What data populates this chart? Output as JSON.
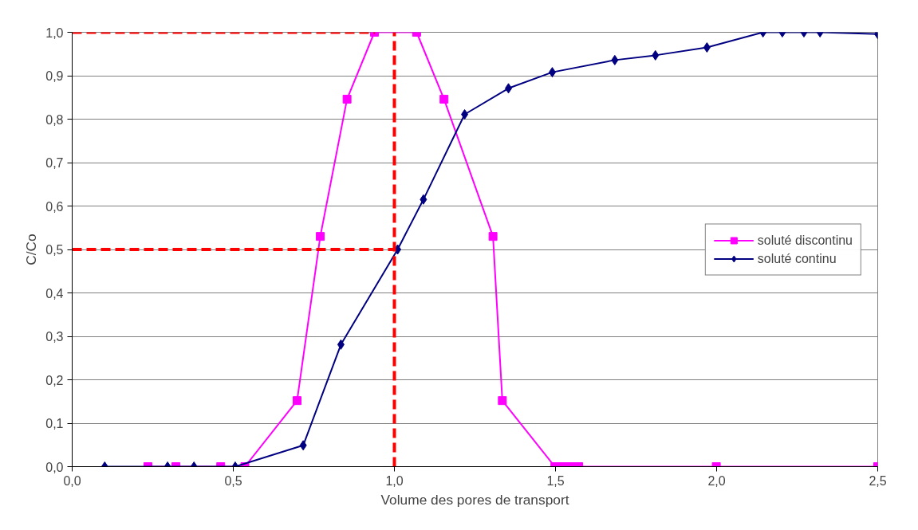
{
  "chart_data": {
    "type": "line",
    "xlabel": "Volume des pores de transport",
    "ylabel": "C/Co",
    "xlim": [
      0,
      2.5
    ],
    "ylim": [
      0,
      1.0
    ],
    "xticks": [
      {
        "value": 0,
        "label": "0,0"
      },
      {
        "value": 0.5,
        "label": "0,5"
      },
      {
        "value": 1.0,
        "label": "1,0"
      },
      {
        "value": 1.5,
        "label": "1,5"
      },
      {
        "value": 2.0,
        "label": "2,0"
      },
      {
        "value": 2.5,
        "label": "2,5"
      }
    ],
    "yticks": [
      {
        "value": 0,
        "label": "0,0"
      },
      {
        "value": 0.1,
        "label": "0,1"
      },
      {
        "value": 0.2,
        "label": "0,2"
      },
      {
        "value": 0.3,
        "label": "0,3"
      },
      {
        "value": 0.4,
        "label": "0,4"
      },
      {
        "value": 0.5,
        "label": "0,5"
      },
      {
        "value": 0.6,
        "label": "0,6"
      },
      {
        "value": 0.7,
        "label": "0,7"
      },
      {
        "value": 0.8,
        "label": "0,8"
      },
      {
        "value": 0.9,
        "label": "0,9"
      },
      {
        "value": 1.0,
        "label": "1,0"
      }
    ],
    "grid": "y",
    "legend": "right",
    "series": [
      {
        "name": "soluté discontinu",
        "color": "#ff00ff",
        "marker": "square",
        "line_style": "solid",
        "x": [
          0.235,
          0.322,
          0.461,
          0.536,
          0.698,
          0.77,
          0.853,
          0.938,
          1.069,
          1.154,
          1.306,
          1.335,
          1.498,
          1.517,
          1.535,
          1.554,
          1.572,
          1.999,
          2.5
        ],
        "values": [
          0,
          0,
          0,
          0,
          0.152,
          0.53,
          0.846,
          1.0,
          1.0,
          0.846,
          0.53,
          0.152,
          0,
          0,
          0,
          0,
          0,
          0,
          0
        ]
      },
      {
        "name": "soluté continu",
        "color": "#000080",
        "marker": "diamond",
        "line_style": "solid",
        "x": [
          0.101,
          0.296,
          0.378,
          0.506,
          0.717,
          0.834,
          1.01,
          1.09,
          1.218,
          1.354,
          1.49,
          1.684,
          1.81,
          1.97,
          2.144,
          2.204,
          2.271,
          2.321,
          2.5
        ],
        "values": [
          0,
          0,
          0,
          0,
          0.049,
          0.281,
          0.5,
          0.615,
          0.811,
          0.871,
          0.908,
          0.936,
          0.947,
          0.965,
          1.0,
          1.0,
          1.0,
          1.0,
          0.996
        ]
      },
      {
        "color": "#ff0000",
        "marker": "none",
        "line_style": "dashed",
        "x": [
          0,
          0.94
        ],
        "values": [
          1.0,
          1.0
        ]
      },
      {
        "color": "#ff0000",
        "marker": "none",
        "line_style": "dashed",
        "x": [
          1.0,
          1.0
        ],
        "values": [
          0,
          1.0
        ]
      },
      {
        "color": "#ff0000",
        "marker": "none",
        "line_style": "dashed",
        "x": [
          0,
          1.0
        ],
        "values": [
          0.5,
          0.5
        ]
      }
    ]
  }
}
